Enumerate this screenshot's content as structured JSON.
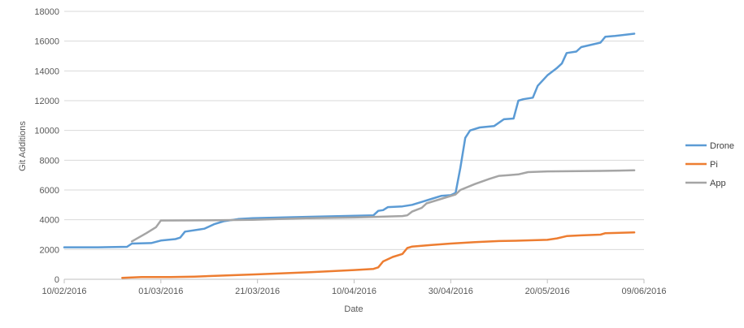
{
  "chart_data": {
    "type": "line",
    "title": "",
    "xlabel": "Date",
    "ylabel": "Git Additions",
    "x_type": "date",
    "x_ticks": [
      "2016-02-10",
      "2016-03-01",
      "2016-03-21",
      "2016-04-10",
      "2016-04-30",
      "2016-05-20",
      "2016-06-09"
    ],
    "x_tick_labels": [
      "10/02/2016",
      "01/03/2016",
      "21/03/2016",
      "10/04/2016",
      "30/04/2016",
      "20/05/2016",
      "09/06/2016"
    ],
    "xlim": [
      "2016-02-10",
      "2016-06-09"
    ],
    "ylim": [
      0,
      18000
    ],
    "y_ticks": [
      0,
      2000,
      4000,
      6000,
      8000,
      10000,
      12000,
      14000,
      16000,
      18000
    ],
    "y_tick_labels": [
      "0",
      "2000",
      "4000",
      "6000",
      "8000",
      "10000",
      "12000",
      "14000",
      "16000",
      "18000"
    ],
    "grid": "horizontal",
    "legend_position": "right",
    "series": [
      {
        "name": "Drone",
        "color": "#5b9bd5",
        "points": [
          [
            "2016-02-10",
            2150
          ],
          [
            "2016-02-17",
            2150
          ],
          [
            "2016-02-23",
            2180
          ],
          [
            "2016-02-24",
            2400
          ],
          [
            "2016-02-28",
            2430
          ],
          [
            "2016-03-01",
            2600
          ],
          [
            "2016-03-04",
            2700
          ],
          [
            "2016-03-05",
            2800
          ],
          [
            "2016-03-06",
            3200
          ],
          [
            "2016-03-09",
            3350
          ],
          [
            "2016-03-10",
            3400
          ],
          [
            "2016-03-12",
            3700
          ],
          [
            "2016-03-14",
            3900
          ],
          [
            "2016-03-17",
            4050
          ],
          [
            "2016-03-20",
            4100
          ],
          [
            "2016-04-01",
            4200
          ],
          [
            "2016-04-14",
            4300
          ],
          [
            "2016-04-15",
            4600
          ],
          [
            "2016-04-16",
            4650
          ],
          [
            "2016-04-17",
            4850
          ],
          [
            "2016-04-20",
            4900
          ],
          [
            "2016-04-22",
            5000
          ],
          [
            "2016-04-24",
            5200
          ],
          [
            "2016-04-26",
            5400
          ],
          [
            "2016-04-28",
            5600
          ],
          [
            "2016-04-30",
            5650
          ],
          [
            "2016-05-01",
            5800
          ],
          [
            "2016-05-02",
            7500
          ],
          [
            "2016-05-03",
            9500
          ],
          [
            "2016-05-04",
            10000
          ],
          [
            "2016-05-06",
            10200
          ],
          [
            "2016-05-09",
            10300
          ],
          [
            "2016-05-11",
            10750
          ],
          [
            "2016-05-13",
            10800
          ],
          [
            "2016-05-14",
            12000
          ],
          [
            "2016-05-15",
            12100
          ],
          [
            "2016-05-17",
            12200
          ],
          [
            "2016-05-18",
            13000
          ],
          [
            "2016-05-20",
            13700
          ],
          [
            "2016-05-22",
            14200
          ],
          [
            "2016-05-23",
            14500
          ],
          [
            "2016-05-24",
            15200
          ],
          [
            "2016-05-26",
            15300
          ],
          [
            "2016-05-27",
            15600
          ],
          [
            "2016-05-31",
            15900
          ],
          [
            "2016-06-01",
            16300
          ],
          [
            "2016-06-03",
            16350
          ],
          [
            "2016-06-07",
            16500
          ]
        ]
      },
      {
        "name": "Pi",
        "color": "#ed7d31",
        "points": [
          [
            "2016-02-22",
            100
          ],
          [
            "2016-02-26",
            150
          ],
          [
            "2016-03-03",
            150
          ],
          [
            "2016-03-08",
            180
          ],
          [
            "2016-03-14",
            250
          ],
          [
            "2016-03-21",
            330
          ],
          [
            "2016-04-01",
            480
          ],
          [
            "2016-04-10",
            620
          ],
          [
            "2016-04-14",
            700
          ],
          [
            "2016-04-15",
            800
          ],
          [
            "2016-04-16",
            1200
          ],
          [
            "2016-04-18",
            1500
          ],
          [
            "2016-04-20",
            1700
          ],
          [
            "2016-04-21",
            2100
          ],
          [
            "2016-04-22",
            2200
          ],
          [
            "2016-04-26",
            2300
          ],
          [
            "2016-04-30",
            2400
          ],
          [
            "2016-05-05",
            2500
          ],
          [
            "2016-05-10",
            2570
          ],
          [
            "2016-05-15",
            2600
          ],
          [
            "2016-05-20",
            2650
          ],
          [
            "2016-05-22",
            2750
          ],
          [
            "2016-05-24",
            2900
          ],
          [
            "2016-05-27",
            2950
          ],
          [
            "2016-05-31",
            3000
          ],
          [
            "2016-06-01",
            3100
          ],
          [
            "2016-06-07",
            3150
          ]
        ]
      },
      {
        "name": "App",
        "color": "#a5a5a5",
        "points": [
          [
            "2016-02-24",
            2550
          ],
          [
            "2016-02-27",
            3100
          ],
          [
            "2016-02-29",
            3500
          ],
          [
            "2016-03-01",
            3950
          ],
          [
            "2016-03-10",
            3960
          ],
          [
            "2016-03-20",
            4000
          ],
          [
            "2016-03-31",
            4100
          ],
          [
            "2016-04-10",
            4150
          ],
          [
            "2016-04-20",
            4250
          ],
          [
            "2016-04-21",
            4300
          ],
          [
            "2016-04-22",
            4550
          ],
          [
            "2016-04-24",
            4800
          ],
          [
            "2016-04-25",
            5100
          ],
          [
            "2016-04-28",
            5400
          ],
          [
            "2016-05-01",
            5700
          ],
          [
            "2016-05-02",
            6000
          ],
          [
            "2016-05-05",
            6400
          ],
          [
            "2016-05-08",
            6750
          ],
          [
            "2016-05-10",
            6950
          ],
          [
            "2016-05-12",
            7000
          ],
          [
            "2016-05-14",
            7050
          ],
          [
            "2016-05-16",
            7200
          ],
          [
            "2016-05-20",
            7250
          ],
          [
            "2016-05-31",
            7280
          ],
          [
            "2016-06-07",
            7320
          ]
        ]
      }
    ]
  }
}
